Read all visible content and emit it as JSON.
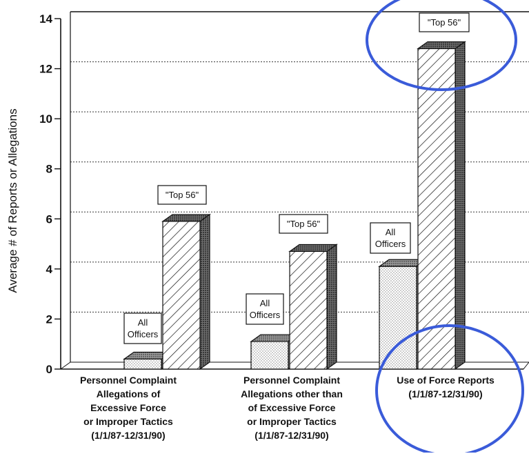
{
  "chart_data": {
    "type": "bar",
    "style": "3d-clustered",
    "title": "",
    "xlabel": "",
    "ylabel": "Average # of Reports or Allegations",
    "ylim": [
      0,
      14
    ],
    "yticks": [
      0,
      2,
      4,
      6,
      8,
      10,
      12,
      14
    ],
    "grid": true,
    "categories": [
      [
        "Personnel Complaint",
        "Allegations of",
        "Excessive Force",
        "or Improper Tactics",
        "(1/1/87-12/31/90)"
      ],
      [
        "Personnel Complaint",
        "Allegations other than",
        "of Excessive Force",
        "or Improper Tactics",
        "(1/1/87-12/31/90)"
      ],
      [
        "Use of Force Reports",
        "(1/1/87-12/31/90)"
      ]
    ],
    "series": [
      {
        "name": "All Officers",
        "label_lines": [
          "All",
          "Officers"
        ],
        "values": [
          0.4,
          1.1,
          4.1
        ]
      },
      {
        "name": "\"Top 56\"",
        "label_lines": [
          "\"Top 56\""
        ],
        "values": [
          5.9,
          4.7,
          12.8
        ]
      }
    ],
    "colors": {
      "circle": "#3a5bd9",
      "axis": "#111111",
      "grid": "#333333"
    }
  }
}
